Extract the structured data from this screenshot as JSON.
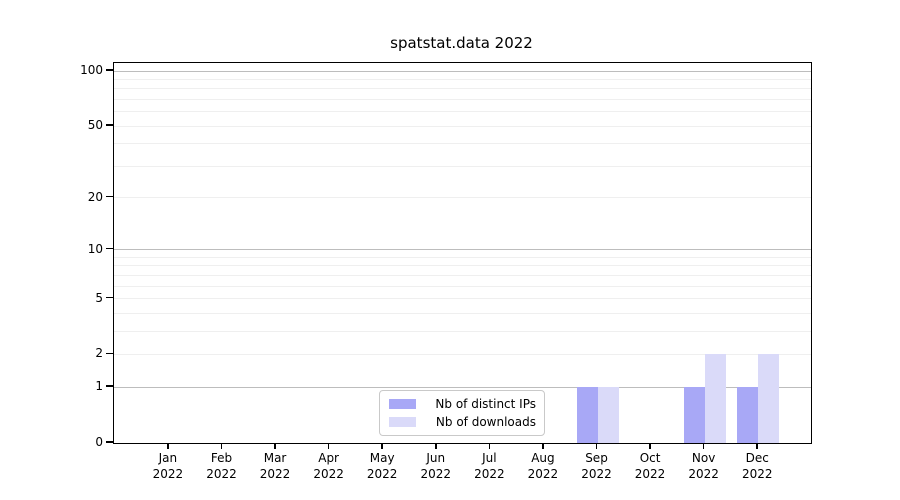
{
  "chart_data": {
    "type": "bar",
    "title": "spatstat.data 2022",
    "categories": [
      "Jan",
      "Feb",
      "Mar",
      "Apr",
      "May",
      "Jun",
      "Jul",
      "Aug",
      "Sep",
      "Oct",
      "Nov",
      "Dec"
    ],
    "year_label": "2022",
    "series": [
      {
        "name": "Nb of distinct IPs",
        "color": "#a8a8f6",
        "values": [
          0,
          0,
          0,
          0,
          0,
          0,
          0,
          0,
          1,
          0,
          1,
          1
        ]
      },
      {
        "name": "Nb of downloads",
        "color": "#dadaf9",
        "values": [
          0,
          0,
          0,
          0,
          0,
          0,
          0,
          0,
          1,
          0,
          2,
          2
        ]
      }
    ],
    "xlabel": "",
    "ylabel": "",
    "y_scale": "log1p",
    "ylim": [
      0,
      110
    ],
    "y_ticks": [
      0,
      1,
      2,
      5,
      10,
      20,
      50,
      100
    ],
    "y_grid_major": [
      1,
      10,
      100
    ],
    "y_grid_minor": [
      2,
      3,
      4,
      5,
      6,
      7,
      8,
      9,
      20,
      30,
      40,
      50,
      60,
      70,
      80,
      90
    ],
    "grid": "on",
    "legend_position": "inside-bottom-center"
  }
}
